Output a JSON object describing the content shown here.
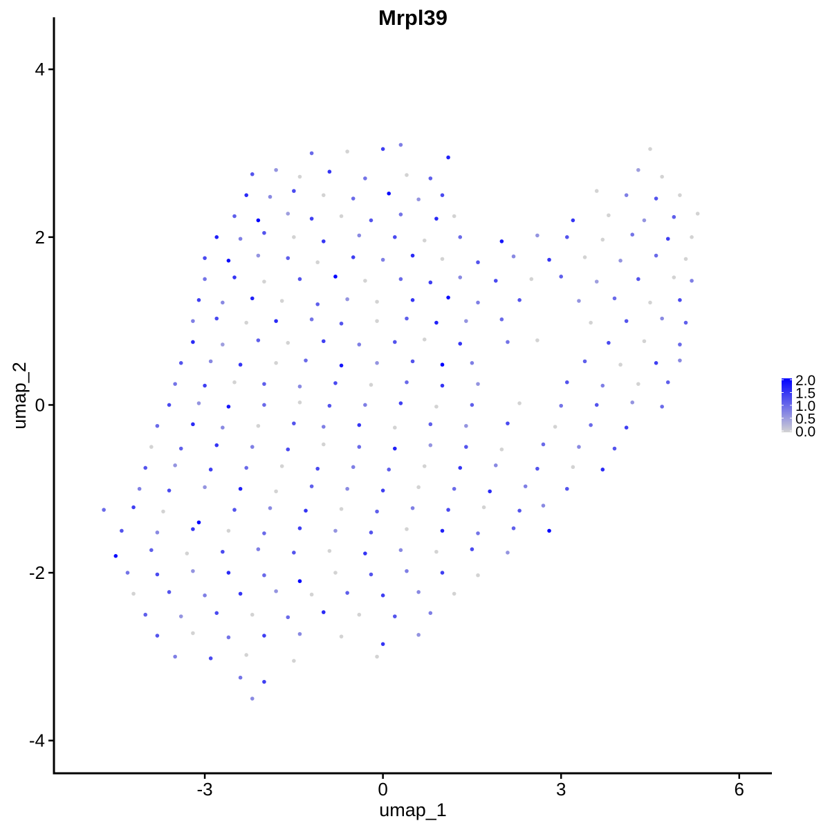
{
  "chart_data": {
    "type": "scatter",
    "title": "Mrpl39",
    "xlabel": "umap_1",
    "ylabel": "umap_2",
    "xlim": [
      -5.54,
      6.55
    ],
    "ylim": [
      -4.39,
      4.62
    ],
    "xticks": [
      -3,
      0,
      3,
      6
    ],
    "yticks": [
      -4,
      -2,
      0,
      2,
      4
    ],
    "grid": false,
    "legend": {
      "placement": "right",
      "type": "colorbar",
      "ticks": [
        "2.0",
        "1.5",
        "1.0",
        "0.5",
        "0.0"
      ],
      "range": [
        0,
        2.0
      ],
      "low_color": "#D3D3D3",
      "high_color": "#0000FF"
    },
    "points": [
      [
        -1.2,
        3.0,
        1.0
      ],
      [
        -0.6,
        3.02,
        0
      ],
      [
        0.0,
        3.05,
        1.4
      ],
      [
        0.3,
        3.1,
        0.8
      ],
      [
        1.1,
        2.95,
        1.7
      ],
      [
        4.5,
        3.05,
        0
      ],
      [
        -2.2,
        2.75,
        1.2
      ],
      [
        -1.8,
        2.8,
        0.6
      ],
      [
        -1.4,
        2.72,
        0
      ],
      [
        -0.9,
        2.78,
        1.5
      ],
      [
        -0.3,
        2.7,
        0.9
      ],
      [
        0.4,
        2.74,
        0
      ],
      [
        0.8,
        2.7,
        1.1
      ],
      [
        4.3,
        2.8,
        0.5
      ],
      [
        4.7,
        2.72,
        0
      ],
      [
        -2.3,
        2.5,
        1.6
      ],
      [
        -1.9,
        2.48,
        0.7
      ],
      [
        -1.5,
        2.55,
        1.3
      ],
      [
        -1.0,
        2.5,
        0
      ],
      [
        -0.5,
        2.46,
        1.0
      ],
      [
        0.1,
        2.52,
        1.9
      ],
      [
        0.6,
        2.45,
        0.6
      ],
      [
        1.0,
        2.5,
        1.3
      ],
      [
        3.6,
        2.55,
        0
      ],
      [
        4.1,
        2.5,
        0.8
      ],
      [
        4.6,
        2.46,
        1.2
      ],
      [
        5.0,
        2.5,
        0
      ],
      [
        -2.5,
        2.25,
        1.1
      ],
      [
        -2.1,
        2.2,
        2.0
      ],
      [
        -1.6,
        2.28,
        0.5
      ],
      [
        -1.2,
        2.22,
        1.4
      ],
      [
        -0.7,
        2.25,
        0
      ],
      [
        -0.2,
        2.2,
        1.2
      ],
      [
        0.3,
        2.27,
        0.9
      ],
      [
        0.9,
        2.22,
        1.6
      ],
      [
        1.2,
        2.25,
        0
      ],
      [
        3.2,
        2.2,
        1.5
      ],
      [
        3.8,
        2.26,
        0
      ],
      [
        4.4,
        2.2,
        0.6
      ],
      [
        4.9,
        2.24,
        1.1
      ],
      [
        5.3,
        2.28,
        0
      ],
      [
        -2.8,
        2.0,
        1.7
      ],
      [
        -2.4,
        1.98,
        0.8
      ],
      [
        -2.0,
        2.05,
        1.2
      ],
      [
        -1.5,
        2.0,
        0
      ],
      [
        -1.0,
        1.95,
        1.5
      ],
      [
        -0.4,
        2.02,
        0.7
      ],
      [
        0.2,
        2.0,
        1.3
      ],
      [
        0.7,
        1.96,
        0
      ],
      [
        1.3,
        2.0,
        1.0
      ],
      [
        2.0,
        1.95,
        1.8
      ],
      [
        2.6,
        2.02,
        0.6
      ],
      [
        3.1,
        2.0,
        1.2
      ],
      [
        3.7,
        1.97,
        0
      ],
      [
        4.2,
        2.03,
        0.9
      ],
      [
        4.8,
        1.98,
        1.4
      ],
      [
        5.2,
        2.0,
        0
      ],
      [
        -3.0,
        1.75,
        1.3
      ],
      [
        -2.6,
        1.72,
        1.9
      ],
      [
        -2.1,
        1.78,
        0.6
      ],
      [
        -1.6,
        1.75,
        1.1
      ],
      [
        -1.1,
        1.7,
        0
      ],
      [
        -0.5,
        1.76,
        1.4
      ],
      [
        0.0,
        1.73,
        0.8
      ],
      [
        0.5,
        1.78,
        1.6
      ],
      [
        1.0,
        1.74,
        0
      ],
      [
        1.6,
        1.7,
        1.2
      ],
      [
        2.2,
        1.77,
        0.7
      ],
      [
        2.8,
        1.73,
        1.5
      ],
      [
        3.4,
        1.76,
        0
      ],
      [
        4.0,
        1.72,
        0.6
      ],
      [
        4.6,
        1.78,
        1.0
      ],
      [
        5.1,
        1.74,
        0
      ],
      [
        -3.0,
        1.5,
        0.9
      ],
      [
        -2.5,
        1.52,
        1.5
      ],
      [
        -2.0,
        1.47,
        0
      ],
      [
        -1.4,
        1.5,
        1.2
      ],
      [
        -0.8,
        1.53,
        2.1
      ],
      [
        -0.3,
        1.48,
        0
      ],
      [
        0.3,
        1.5,
        1.0
      ],
      [
        0.8,
        1.46,
        1.4
      ],
      [
        1.3,
        1.52,
        0.7
      ],
      [
        1.9,
        1.48,
        1.3
      ],
      [
        2.5,
        1.5,
        0
      ],
      [
        3.0,
        1.53,
        1.1
      ],
      [
        3.6,
        1.47,
        0.5
      ],
      [
        4.3,
        1.5,
        1.2
      ],
      [
        4.9,
        1.52,
        0
      ],
      [
        5.2,
        1.48,
        0.8
      ],
      [
        -3.1,
        1.25,
        1.4
      ],
      [
        -2.7,
        1.22,
        0.7
      ],
      [
        -2.2,
        1.27,
        1.7
      ],
      [
        -1.7,
        1.24,
        0
      ],
      [
        -1.1,
        1.2,
        1.1
      ],
      [
        -0.6,
        1.26,
        0.6
      ],
      [
        -0.1,
        1.23,
        0
      ],
      [
        0.5,
        1.25,
        1.5
      ],
      [
        1.1,
        1.28,
        1.9
      ],
      [
        1.6,
        1.22,
        0.8
      ],
      [
        2.3,
        1.25,
        1.2
      ],
      [
        3.3,
        1.24,
        0.6
      ],
      [
        3.9,
        1.27,
        1.0
      ],
      [
        4.5,
        1.22,
        0
      ],
      [
        5.0,
        1.25,
        1.3
      ],
      [
        -3.2,
        1.0,
        0.8
      ],
      [
        -2.8,
        1.03,
        1.3
      ],
      [
        -2.3,
        0.98,
        0
      ],
      [
        -1.8,
        1.0,
        1.6
      ],
      [
        -1.2,
        1.02,
        0.9
      ],
      [
        -0.7,
        0.97,
        1.2
      ],
      [
        -0.1,
        1.0,
        0
      ],
      [
        0.4,
        1.03,
        1.1
      ],
      [
        0.9,
        0.98,
        1.7
      ],
      [
        1.4,
        1.0,
        0.6
      ],
      [
        2.0,
        1.02,
        1.0
      ],
      [
        3.5,
        0.98,
        0
      ],
      [
        4.1,
        1.0,
        1.2
      ],
      [
        4.7,
        1.03,
        0.7
      ],
      [
        5.1,
        0.98,
        1.1
      ],
      [
        -3.2,
        0.75,
        1.6
      ],
      [
        -2.7,
        0.72,
        0.5
      ],
      [
        -2.1,
        0.77,
        1.1
      ],
      [
        -1.6,
        0.74,
        0
      ],
      [
        -1.0,
        0.76,
        1.4
      ],
      [
        -0.4,
        0.72,
        0.8
      ],
      [
        0.2,
        0.75,
        1.2
      ],
      [
        0.7,
        0.78,
        0
      ],
      [
        1.3,
        0.73,
        1.5
      ],
      [
        2.1,
        0.75,
        0.9
      ],
      [
        2.6,
        0.77,
        0
      ],
      [
        3.8,
        0.74,
        1.3
      ],
      [
        4.4,
        0.76,
        0
      ],
      [
        5.0,
        0.72,
        1.0
      ],
      [
        -3.4,
        0.5,
        1.2
      ],
      [
        -2.9,
        0.52,
        0.7
      ],
      [
        -2.4,
        0.48,
        1.5
      ],
      [
        -1.8,
        0.5,
        0
      ],
      [
        -1.3,
        0.53,
        1.0
      ],
      [
        -0.7,
        0.47,
        1.8
      ],
      [
        -0.1,
        0.5,
        0.6
      ],
      [
        0.5,
        0.52,
        1.2
      ],
      [
        1.0,
        0.48,
        2.2
      ],
      [
        1.5,
        0.5,
        0.8
      ],
      [
        3.4,
        0.52,
        1.1
      ],
      [
        4.0,
        0.48,
        0
      ],
      [
        4.6,
        0.5,
        1.4
      ],
      [
        5.0,
        0.53,
        0.7
      ],
      [
        -3.5,
        0.25,
        0.9
      ],
      [
        -3.0,
        0.23,
        1.4
      ],
      [
        -2.5,
        0.27,
        0
      ],
      [
        -2.0,
        0.25,
        1.1
      ],
      [
        -1.4,
        0.22,
        0.7
      ],
      [
        -0.8,
        0.26,
        1.3
      ],
      [
        -0.2,
        0.24,
        0
      ],
      [
        0.4,
        0.27,
        1.0
      ],
      [
        1.0,
        0.23,
        1.5
      ],
      [
        1.6,
        0.25,
        0.6
      ],
      [
        3.1,
        0.27,
        1.2
      ],
      [
        3.7,
        0.23,
        0.8
      ],
      [
        4.3,
        0.25,
        0
      ],
      [
        4.8,
        0.27,
        1.1
      ],
      [
        -3.6,
        0.0,
        1.3
      ],
      [
        -3.1,
        0.02,
        0.6
      ],
      [
        -2.6,
        -0.02,
        1.8
      ],
      [
        -2.0,
        0.0,
        1.0
      ],
      [
        -1.4,
        0.03,
        0
      ],
      [
        -0.9,
        -0.01,
        1.2
      ],
      [
        -0.3,
        0.0,
        0.8
      ],
      [
        0.3,
        0.02,
        1.4
      ],
      [
        0.9,
        -0.02,
        0
      ],
      [
        1.5,
        0.0,
        1.1
      ],
      [
        2.3,
        0.02,
        0
      ],
      [
        3.0,
        -0.01,
        0.9
      ],
      [
        3.6,
        0.0,
        1.2
      ],
      [
        4.2,
        0.03,
        0.6
      ],
      [
        4.7,
        -0.02,
        1.0
      ],
      [
        -3.8,
        -0.25,
        1.0
      ],
      [
        -3.2,
        -0.23,
        1.6
      ],
      [
        -2.7,
        -0.27,
        0.7
      ],
      [
        -2.1,
        -0.25,
        0
      ],
      [
        -1.5,
        -0.22,
        1.2
      ],
      [
        -1.0,
        -0.26,
        0.8
      ],
      [
        -0.4,
        -0.24,
        1.5
      ],
      [
        0.2,
        -0.27,
        0
      ],
      [
        0.8,
        -0.23,
        1.1
      ],
      [
        1.4,
        -0.25,
        0.6
      ],
      [
        2.1,
        -0.22,
        1.3
      ],
      [
        2.9,
        -0.26,
        0
      ],
      [
        3.5,
        -0.24,
        1.0
      ],
      [
        4.1,
        -0.27,
        1.4
      ],
      [
        -3.9,
        -0.5,
        0
      ],
      [
        -3.4,
        -0.52,
        1.1
      ],
      [
        -2.8,
        -0.48,
        1.5
      ],
      [
        -2.2,
        -0.5,
        0.8
      ],
      [
        -1.6,
        -0.53,
        1.3
      ],
      [
        -1.0,
        -0.47,
        0
      ],
      [
        -0.4,
        -0.5,
        1.0
      ],
      [
        0.2,
        -0.52,
        1.7
      ],
      [
        0.8,
        -0.48,
        0.6
      ],
      [
        1.4,
        -0.5,
        1.2
      ],
      [
        2.0,
        -0.53,
        0
      ],
      [
        2.7,
        -0.47,
        1.0
      ],
      [
        3.3,
        -0.5,
        0.7
      ],
      [
        3.9,
        -0.52,
        1.2
      ],
      [
        -4.0,
        -0.75,
        1.2
      ],
      [
        -3.5,
        -0.72,
        0.6
      ],
      [
        -2.9,
        -0.77,
        1.4
      ],
      [
        -2.3,
        -0.75,
        1.0
      ],
      [
        -1.7,
        -0.73,
        0
      ],
      [
        -1.1,
        -0.76,
        1.3
      ],
      [
        -0.5,
        -0.74,
        0.8
      ],
      [
        0.1,
        -0.77,
        1.1
      ],
      [
        0.7,
        -0.73,
        0
      ],
      [
        1.3,
        -0.75,
        1.5
      ],
      [
        1.9,
        -0.72,
        0.7
      ],
      [
        2.6,
        -0.76,
        1.2
      ],
      [
        3.2,
        -0.74,
        0
      ],
      [
        3.7,
        -0.77,
        1.6
      ],
      [
        -4.1,
        -1.0,
        0.8
      ],
      [
        -3.6,
        -1.02,
        1.3
      ],
      [
        -3.0,
        -0.98,
        0.6
      ],
      [
        -2.4,
        -1.0,
        1.7
      ],
      [
        -1.8,
        -1.03,
        0
      ],
      [
        -1.2,
        -0.97,
        1.1
      ],
      [
        -0.6,
        -1.0,
        0.7
      ],
      [
        0.0,
        -1.02,
        1.4
      ],
      [
        0.6,
        -0.98,
        0
      ],
      [
        1.2,
        -1.0,
        1.0
      ],
      [
        1.8,
        -1.03,
        1.6
      ],
      [
        2.4,
        -0.97,
        0.8
      ],
      [
        3.1,
        -1.0,
        1.2
      ],
      [
        -4.7,
        -1.25,
        1.0
      ],
      [
        -4.2,
        -1.22,
        1.4
      ],
      [
        -3.7,
        -1.27,
        0
      ],
      [
        -3.1,
        -1.4,
        2.2
      ],
      [
        -2.5,
        -1.25,
        1.2
      ],
      [
        -1.9,
        -1.23,
        0.7
      ],
      [
        -1.3,
        -1.26,
        1.5
      ],
      [
        -0.7,
        -1.24,
        0
      ],
      [
        -0.1,
        -1.27,
        1.1
      ],
      [
        0.5,
        -1.23,
        0.8
      ],
      [
        1.1,
        -1.25,
        1.3
      ],
      [
        1.7,
        -1.22,
        0
      ],
      [
        2.3,
        -1.26,
        1.2
      ],
      [
        2.8,
        -1.5,
        2.0
      ],
      [
        -4.4,
        -1.5,
        1.2
      ],
      [
        -3.8,
        -1.52,
        0.7
      ],
      [
        -3.2,
        -1.48,
        1.5
      ],
      [
        -2.6,
        -1.5,
        0
      ],
      [
        -2.0,
        -1.53,
        1.0
      ],
      [
        -1.4,
        -1.47,
        1.4
      ],
      [
        -0.8,
        -1.5,
        0.6
      ],
      [
        -0.2,
        -1.52,
        1.2
      ],
      [
        0.4,
        -1.48,
        0
      ],
      [
        1.0,
        -1.5,
        1.7
      ],
      [
        1.6,
        -1.53,
        0.9
      ],
      [
        2.2,
        -1.47,
        1.1
      ],
      [
        2.7,
        -1.2,
        0.7
      ],
      [
        -4.5,
        -1.8,
        1.9
      ],
      [
        -3.9,
        -1.73,
        1.1
      ],
      [
        -3.3,
        -1.77,
        0
      ],
      [
        -2.7,
        -1.75,
        1.3
      ],
      [
        -2.1,
        -1.72,
        0.8
      ],
      [
        -1.5,
        -1.76,
        1.2
      ],
      [
        -0.9,
        -1.74,
        0
      ],
      [
        -0.3,
        -1.77,
        1.5
      ],
      [
        0.3,
        -1.73,
        0.7
      ],
      [
        0.9,
        -1.75,
        0
      ],
      [
        1.5,
        -1.72,
        1.3
      ],
      [
        2.1,
        -1.76,
        0.6
      ],
      [
        -4.3,
        -2.0,
        0.9
      ],
      [
        -3.8,
        -2.02,
        1.3
      ],
      [
        -3.2,
        -1.98,
        0.6
      ],
      [
        -2.6,
        -2.0,
        1.6
      ],
      [
        -2.0,
        -2.03,
        1.0
      ],
      [
        -1.4,
        -2.1,
        2.1
      ],
      [
        -0.8,
        -2.0,
        0
      ],
      [
        -0.2,
        -2.02,
        1.2
      ],
      [
        0.4,
        -1.98,
        0.8
      ],
      [
        1.0,
        -2.0,
        1.4
      ],
      [
        1.6,
        -2.03,
        0
      ],
      [
        -4.2,
        -2.25,
        0
      ],
      [
        -3.6,
        -2.23,
        1.2
      ],
      [
        -3.0,
        -2.27,
        0.8
      ],
      [
        -2.4,
        -2.25,
        1.5
      ],
      [
        -1.8,
        -2.22,
        0.6
      ],
      [
        -1.2,
        -2.26,
        0
      ],
      [
        -0.6,
        -2.24,
        1.1
      ],
      [
        0.0,
        -2.27,
        1.4
      ],
      [
        0.6,
        -2.23,
        0.7
      ],
      [
        1.2,
        -2.25,
        0
      ],
      [
        -4.0,
        -2.5,
        1.1
      ],
      [
        -3.4,
        -2.52,
        0.6
      ],
      [
        -2.8,
        -2.48,
        1.3
      ],
      [
        -2.2,
        -2.5,
        0
      ],
      [
        -1.6,
        -2.53,
        1.0
      ],
      [
        -1.0,
        -2.47,
        1.6
      ],
      [
        -0.4,
        -2.5,
        0
      ],
      [
        0.2,
        -2.52,
        1.2
      ],
      [
        0.8,
        -2.48,
        0.8
      ],
      [
        -3.8,
        -2.75,
        1.2
      ],
      [
        -3.2,
        -2.72,
        0
      ],
      [
        -2.6,
        -2.77,
        0.9
      ],
      [
        -2.0,
        -2.75,
        1.4
      ],
      [
        -1.4,
        -2.73,
        0.7
      ],
      [
        -0.7,
        -2.76,
        0
      ],
      [
        0.0,
        -2.85,
        1.5
      ],
      [
        0.6,
        -2.74,
        0.6
      ],
      [
        -3.5,
        -3.0,
        0.8
      ],
      [
        -2.9,
        -3.02,
        1.3
      ],
      [
        -2.3,
        -2.98,
        0
      ],
      [
        -1.5,
        -3.05,
        0
      ],
      [
        -0.1,
        -3.0,
        0
      ],
      [
        -2.4,
        -3.25,
        0.9
      ],
      [
        -2.0,
        -3.3,
        1.4
      ],
      [
        -2.2,
        -3.5,
        0.7
      ]
    ]
  }
}
